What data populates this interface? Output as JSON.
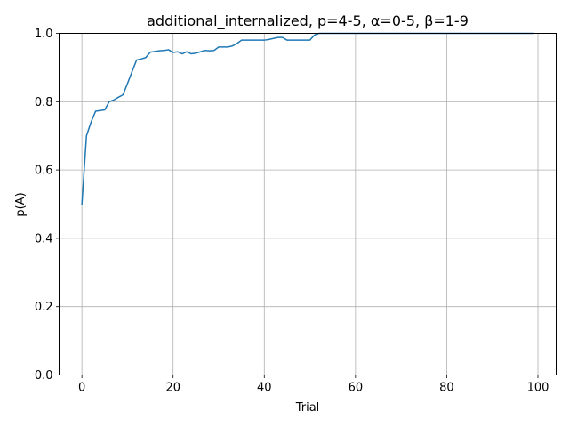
{
  "chart_data": {
    "type": "line",
    "title": "additional_internalized, p=4-5, α=0-5, β=1-9",
    "xlabel": "Trial",
    "ylabel": "p(A)",
    "xlim": [
      -5,
      104
    ],
    "ylim": [
      0,
      1
    ],
    "xticks": [
      0,
      20,
      40,
      60,
      80,
      100
    ],
    "yticks": [
      0.0,
      0.2,
      0.4,
      0.6,
      0.8,
      1.0
    ],
    "xtick_labels": [
      "0",
      "20",
      "40",
      "60",
      "80",
      "100"
    ],
    "ytick_labels": [
      "0.0",
      "0.2",
      "0.4",
      "0.6",
      "0.8",
      "1.0"
    ],
    "grid": true,
    "line_color": "#1f77b4",
    "series": [
      {
        "x": [
          0,
          1,
          2,
          3,
          4,
          5,
          6,
          7,
          8,
          9,
          10,
          11,
          12,
          13,
          14,
          15,
          16,
          17,
          18,
          19,
          20,
          21,
          22,
          23,
          24,
          25,
          26,
          27,
          28,
          29,
          30,
          31,
          32,
          33,
          34,
          35,
          36,
          37,
          38,
          39,
          40,
          41,
          42,
          43,
          44,
          45,
          46,
          47,
          48,
          49,
          50,
          51,
          52,
          53,
          54,
          55,
          56,
          57,
          58,
          59,
          60,
          61,
          62,
          63,
          64,
          65,
          66,
          67,
          68,
          69,
          70,
          71,
          72,
          73,
          74,
          75,
          76,
          77,
          78,
          79,
          80,
          81,
          82,
          83,
          84,
          85,
          86,
          87,
          88,
          89,
          90,
          91,
          92,
          93,
          94,
          95,
          96,
          97,
          98,
          99
        ],
        "y": [
          0.5,
          0.7,
          0.74,
          0.772,
          0.774,
          0.776,
          0.8,
          0.805,
          0.813,
          0.82,
          0.853,
          0.888,
          0.922,
          0.925,
          0.929,
          0.945,
          0.947,
          0.949,
          0.95,
          0.952,
          0.944,
          0.946,
          0.94,
          0.946,
          0.94,
          0.942,
          0.946,
          0.95,
          0.949,
          0.95,
          0.96,
          0.96,
          0.96,
          0.963,
          0.97,
          0.98,
          0.98,
          0.98,
          0.98,
          0.98,
          0.98,
          0.982,
          0.985,
          0.988,
          0.988,
          0.98,
          0.98,
          0.98,
          0.98,
          0.98,
          0.98,
          0.995,
          1.0,
          1.0,
          1.0,
          1.0,
          1.0,
          1.0,
          1.0,
          1.0,
          1.0,
          1.0,
          1.0,
          1.0,
          1.0,
          1.0,
          1.0,
          1.0,
          1.0,
          1.0,
          1.0,
          1.0,
          1.0,
          1.0,
          1.0,
          1.0,
          1.0,
          1.0,
          1.0,
          1.0,
          1.0,
          1.0,
          1.0,
          1.0,
          1.0,
          1.0,
          1.0,
          1.0,
          1.0,
          1.0,
          1.0,
          1.0,
          1.0,
          1.0,
          1.0,
          1.0,
          1.0,
          1.0,
          1.0,
          1.0
        ]
      }
    ]
  }
}
